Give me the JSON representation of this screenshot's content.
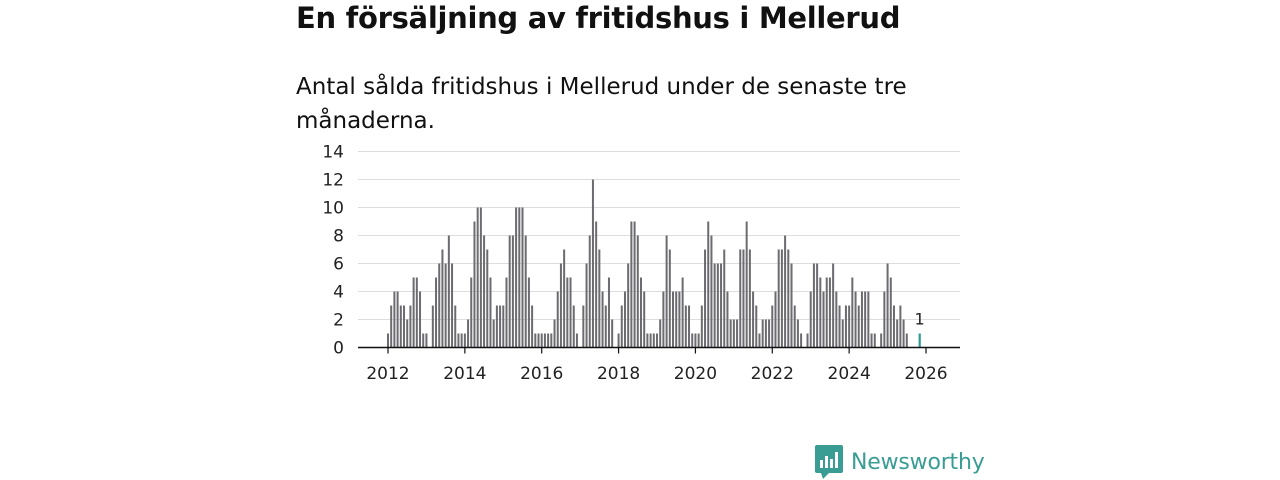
{
  "title": "En försäljning av fritidshus i Mellerud",
  "subtitle": "Antal sålda fritidshus i Mellerud under de senaste tre månaderna.",
  "brand": "Newsworthy",
  "colors": {
    "bar": "#6b6b70",
    "highlight": "#2a9d8f",
    "brand": "#3a9d94",
    "grid": "#dddddd"
  },
  "chart_data": {
    "type": "bar",
    "ylim": [
      0,
      14
    ],
    "y_ticks": [
      "0",
      "2",
      "4",
      "6",
      "8",
      "10",
      "12",
      "14"
    ],
    "x_ticks": [
      "2012",
      "2014",
      "2016",
      "2018",
      "2020",
      "2022",
      "2024",
      "2026"
    ],
    "x_tick_values": [
      2012,
      2014,
      2016,
      2018,
      2020,
      2022,
      2024,
      2026
    ],
    "start_month": "2012-01",
    "values": [
      1,
      3,
      4,
      4,
      3,
      3,
      2,
      3,
      5,
      5,
      4,
      1,
      1,
      0,
      3,
      5,
      6,
      7,
      6,
      8,
      6,
      3,
      1,
      1,
      1,
      2,
      5,
      9,
      10,
      10,
      8,
      7,
      5,
      2,
      3,
      3,
      3,
      5,
      8,
      8,
      10,
      10,
      10,
      8,
      5,
      3,
      1,
      1,
      1,
      1,
      1,
      1,
      2,
      4,
      6,
      7,
      5,
      5,
      3,
      1,
      0,
      3,
      6,
      8,
      12,
      9,
      7,
      4,
      3,
      5,
      2,
      0,
      1,
      3,
      4,
      6,
      9,
      9,
      8,
      5,
      4,
      1,
      1,
      1,
      1,
      2,
      4,
      8,
      7,
      4,
      4,
      4,
      5,
      3,
      3,
      1,
      1,
      1,
      3,
      7,
      9,
      8,
      6,
      6,
      6,
      7,
      4,
      2,
      2,
      2,
      7,
      7,
      9,
      7,
      4,
      3,
      1,
      2,
      2,
      2,
      3,
      4,
      7,
      7,
      8,
      7,
      6,
      3,
      2,
      1,
      0,
      1,
      4,
      6,
      6,
      5,
      4,
      5,
      5,
      6,
      4,
      3,
      2,
      3,
      3,
      5,
      4,
      3,
      4,
      4,
      4,
      1,
      1,
      0,
      1,
      4,
      6,
      5,
      3,
      2,
      3,
      2,
      1,
      0,
      0,
      0,
      1
    ],
    "highlight_label": "1"
  }
}
